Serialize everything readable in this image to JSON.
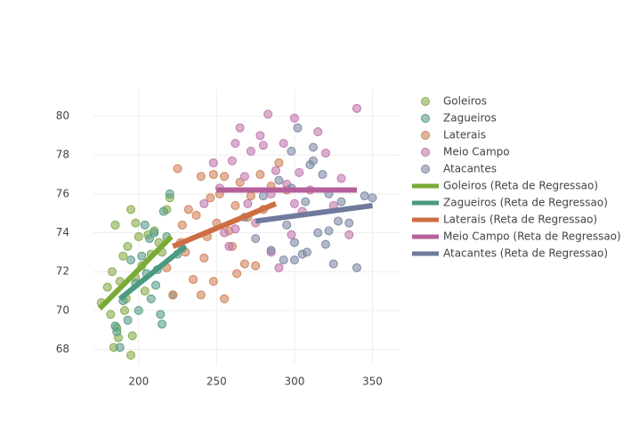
{
  "chart_data": {
    "type": "scatter",
    "xlim": [
      171,
      368
    ],
    "ylim": [
      67.2,
      81.4
    ],
    "xticks": [
      200,
      250,
      300,
      350
    ],
    "yticks": [
      68,
      70,
      72,
      74,
      76,
      78,
      80
    ],
    "grid": true,
    "series": [
      {
        "name": "Goleiros",
        "color": "#8aae4f",
        "mode": "markers",
        "x": [
          176,
          180,
          183,
          185,
          186,
          188,
          190,
          191,
          193,
          195,
          196,
          198,
          200,
          202,
          204,
          206,
          208,
          210,
          213,
          215,
          218,
          220,
          184,
          192,
          195,
          187,
          182,
          198
        ],
        "y": [
          70.4,
          71.2,
          72.0,
          74.4,
          69.1,
          71.5,
          72.8,
          70.0,
          73.3,
          75.2,
          68.7,
          74.5,
          73.8,
          72.3,
          71.0,
          73.9,
          72.9,
          74.1,
          73.5,
          73.0,
          75.2,
          75.8,
          68.1,
          70.6,
          67.7,
          68.6,
          69.8,
          71.7
        ]
      },
      {
        "name": "Zagueiros",
        "color": "#5c9e8a",
        "mode": "markers",
        "x": [
          185,
          188,
          190,
          195,
          198,
          200,
          202,
          205,
          207,
          208,
          210,
          212,
          214,
          216,
          218,
          220,
          222,
          225,
          228,
          186,
          193,
          204,
          211,
          215
        ],
        "y": [
          69.2,
          68.1,
          70.5,
          72.6,
          71.4,
          70.0,
          72.8,
          71.9,
          73.7,
          70.6,
          74.0,
          72.1,
          69.8,
          75.1,
          73.8,
          76.0,
          70.8,
          72.9,
          73.2,
          68.9,
          69.5,
          74.4,
          71.3,
          69.3
        ]
      },
      {
        "name": "Laterais",
        "color": "#d0845c",
        "mode": "markers",
        "x": [
          218,
          222,
          225,
          228,
          230,
          232,
          235,
          237,
          240,
          242,
          244,
          246,
          248,
          250,
          252,
          255,
          258,
          260,
          262,
          265,
          268,
          270,
          272,
          275,
          278,
          280,
          285,
          290,
          295,
          240,
          255,
          263,
          227,
          248
        ],
        "y": [
          72.2,
          70.8,
          77.3,
          74.4,
          73.0,
          75.2,
          71.6,
          74.9,
          76.9,
          72.7,
          73.8,
          75.8,
          71.5,
          74.5,
          76.0,
          70.6,
          74.1,
          73.3,
          75.4,
          76.6,
          72.4,
          74.8,
          75.9,
          72.3,
          77.0,
          75.2,
          76.4,
          77.6,
          76.2,
          70.8,
          76.9,
          71.9,
          73.5,
          77.0
        ]
      },
      {
        "name": "Meio Campo",
        "color": "#c17aad",
        "mode": "markers",
        "x": [
          242,
          248,
          252,
          255,
          258,
          260,
          262,
          265,
          268,
          270,
          272,
          275,
          278,
          280,
          283,
          285,
          288,
          290,
          293,
          295,
          298,
          300,
          303,
          305,
          310,
          315,
          320,
          325,
          330,
          335,
          340,
          262,
          285,
          300
        ],
        "y": [
          75.5,
          77.6,
          76.3,
          74.0,
          73.3,
          77.7,
          78.6,
          79.4,
          76.9,
          75.5,
          78.2,
          74.5,
          79.0,
          78.5,
          80.1,
          76.0,
          77.2,
          72.2,
          78.6,
          76.5,
          73.9,
          79.9,
          77.1,
          75.1,
          76.2,
          79.2,
          78.1,
          75.4,
          76.8,
          73.9,
          80.4,
          74.2,
          73.0,
          75.5
        ]
      },
      {
        "name": "Atacantes",
        "color": "#7f8aa6",
        "mode": "markers",
        "x": [
          268,
          275,
          280,
          285,
          290,
          293,
          295,
          298,
          300,
          302,
          305,
          307,
          310,
          312,
          315,
          318,
          320,
          322,
          325,
          328,
          330,
          335,
          340,
          345,
          350,
          300,
          308,
          312,
          322,
          298
        ],
        "y": [
          74.8,
          73.7,
          75.9,
          73.1,
          76.7,
          72.6,
          74.4,
          78.2,
          73.5,
          79.4,
          72.9,
          75.6,
          77.5,
          78.4,
          74.0,
          77.0,
          73.4,
          76.0,
          72.4,
          74.6,
          75.6,
          74.5,
          72.2,
          75.9,
          75.8,
          72.6,
          73.0,
          77.7,
          74.1,
          76.3
        ]
      },
      {
        "name": "Goleiros (Reta de Regressao)",
        "color": "#7aab36",
        "mode": "lines",
        "x": [
          175,
          221
        ],
        "y": [
          70.1,
          73.8
        ]
      },
      {
        "name": "Zagueiros (Reta de Regressao)",
        "color": "#4a9a80",
        "mode": "lines",
        "x": [
          188,
          230
        ],
        "y": [
          70.6,
          73.3
        ]
      },
      {
        "name": "Laterais (Reta de Regressao)",
        "color": "#cf6d42",
        "mode": "lines",
        "x": [
          222,
          288
        ],
        "y": [
          73.3,
          75.5
        ]
      },
      {
        "name": "Meio Campo (Reta de Regressao)",
        "color": "#b5609a",
        "mode": "lines",
        "x": [
          250,
          340
        ],
        "y": [
          76.2,
          76.2
        ]
      },
      {
        "name": "Atacantes (Reta de Regressao)",
        "color": "#6f7a9d",
        "mode": "lines",
        "x": [
          275,
          350
        ],
        "y": [
          74.6,
          75.4
        ]
      }
    ]
  }
}
